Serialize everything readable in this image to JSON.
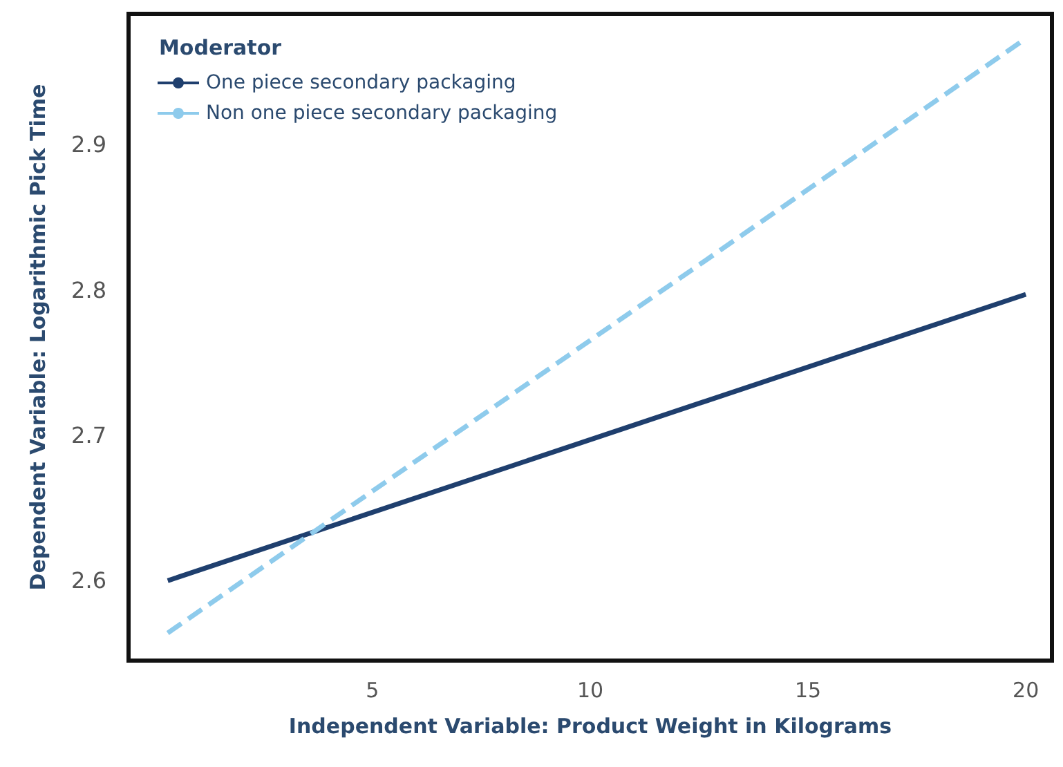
{
  "chart_data": {
    "type": "line",
    "xlabel": "Independent Variable: Product Weight in Kilograms",
    "ylabel": "Dependent Variable: Logarithmic Pick Time",
    "legend_title": "Moderator",
    "xlim": [
      -0.6,
      20.6
    ],
    "xticks": [
      5,
      10,
      15,
      20
    ],
    "ylim": [
      2.545,
      2.99
    ],
    "yticks": [
      2.6,
      2.7,
      2.8,
      2.9
    ],
    "grid": false,
    "legend": "top left",
    "marker": "none",
    "x": [
      0.3,
      20
    ],
    "series": [
      {
        "name": "One piece secondary packaging",
        "color": "#1f3f6e",
        "values": [
          2.6,
          2.797
        ],
        "line_style": "solid"
      },
      {
        "name": "Non one piece secondary packaging",
        "color": "#8ecbec",
        "values": [
          2.564,
          2.973
        ],
        "line_style": "dashed"
      }
    ]
  }
}
